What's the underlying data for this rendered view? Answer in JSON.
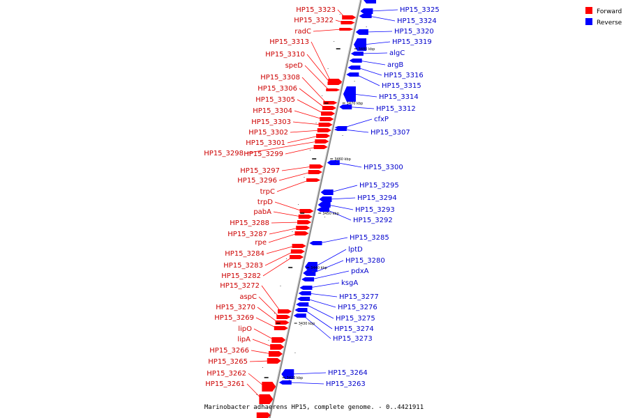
{
  "caption": "Marinobacter adhaerens HP15, complete genome. - 0..4421911",
  "legend": [
    {
      "label": "Forward",
      "color": "#ff0000"
    },
    {
      "label": "Reverse",
      "color": "#0000ff"
    }
  ],
  "colors": {
    "forward": "#ff0000",
    "reverse": "#0000ff",
    "axis": "#888888",
    "forward_text": "#cc0000",
    "reverse_text": "#0000cc"
  },
  "ticks": [
    "3480 kbp",
    "3470 kbp",
    "3460 kbp",
    "3450 kbp",
    "3440 kbp",
    "3430 kbp",
    "3420 kbp"
  ],
  "forward_genes": [
    "HP15_3323",
    "HP15_3322",
    "radC",
    "HP15_3313",
    "HP15_3310",
    "speD",
    "HP15_3308",
    "HP15_3306",
    "HP15_3305",
    "HP15_3304",
    "HP15_3303",
    "HP15_3302",
    "HP15_3301",
    "HP15_3298",
    "HP15_3299",
    "HP15_3297",
    "HP15_3296",
    "trpC",
    "trpD",
    "pabA",
    "HP15_3288",
    "HP15_3287",
    "rpe",
    "HP15_3284",
    "HP15_3283",
    "HP15_3282",
    "HP15_3272",
    "aspC",
    "HP15_3270",
    "HP15_3269",
    "lipO",
    "lipA",
    "HP15_3266",
    "HP15_3265",
    "HP15_3262",
    "HP15_3261"
  ],
  "reverse_genes": [
    "HP15_3325",
    "HP15_3324",
    "HP15_3320",
    "HP15_3319",
    "algC",
    "argB",
    "HP15_3316",
    "HP15_3315",
    "HP15_3314",
    "HP15_3312",
    "cfxP",
    "HP15_3307",
    "HP15_3300",
    "HP15_3295",
    "HP15_3294",
    "HP15_3293",
    "HP15_3292",
    "HP15_3285",
    "lptD",
    "HP15_3280",
    "pdxA",
    "ksgA",
    "HP15_3277",
    "HP15_3276",
    "HP15_3275",
    "HP15_3274",
    "HP15_3273",
    "HP15_3264",
    "HP15_3263"
  ]
}
